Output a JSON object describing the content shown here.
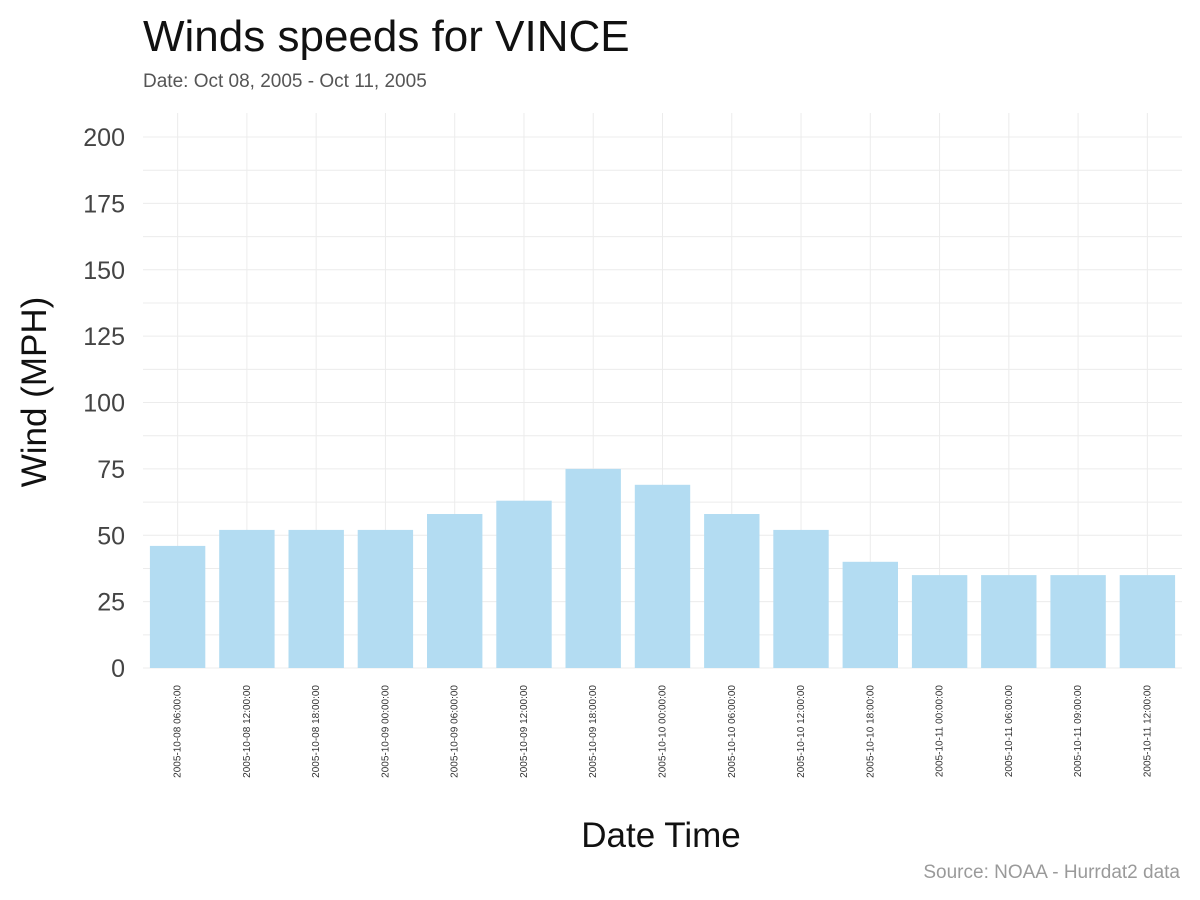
{
  "header": {
    "title": "Winds speeds for VINCE",
    "subtitle": "Date:  Oct 08, 2005 - Oct 11, 2005"
  },
  "footer": {
    "caption": "Source: NOAA - Hurrdat2 data"
  },
  "chart_data": {
    "type": "bar",
    "title": "Winds speeds for VINCE",
    "subtitle": "Date:  Oct 08, 2005 - Oct 11, 2005",
    "xlabel": "Date Time",
    "ylabel": "Wind (MPH)",
    "ylim": [
      0,
      210
    ],
    "yticks": [
      0,
      25,
      50,
      75,
      100,
      125,
      150,
      175,
      200
    ],
    "categories": [
      "2005-10-08 06:00:00",
      "2005-10-08 12:00:00",
      "2005-10-08 18:00:00",
      "2005-10-09 00:00:00",
      "2005-10-09 06:00:00",
      "2005-10-09 12:00:00",
      "2005-10-09 18:00:00",
      "2005-10-10 00:00:00",
      "2005-10-10 06:00:00",
      "2005-10-10 12:00:00",
      "2005-10-10 18:00:00",
      "2005-10-11 00:00:00",
      "2005-10-11 06:00:00",
      "2005-10-11 09:00:00",
      "2005-10-11 12:00:00"
    ],
    "values": [
      46,
      52,
      52,
      52,
      58,
      63,
      75,
      69,
      58,
      52,
      40,
      35,
      35,
      35,
      35
    ],
    "bar_color": "#b3dcf2",
    "grid": true,
    "legend": "none",
    "caption": "Source: NOAA - Hurrdat2 data"
  }
}
